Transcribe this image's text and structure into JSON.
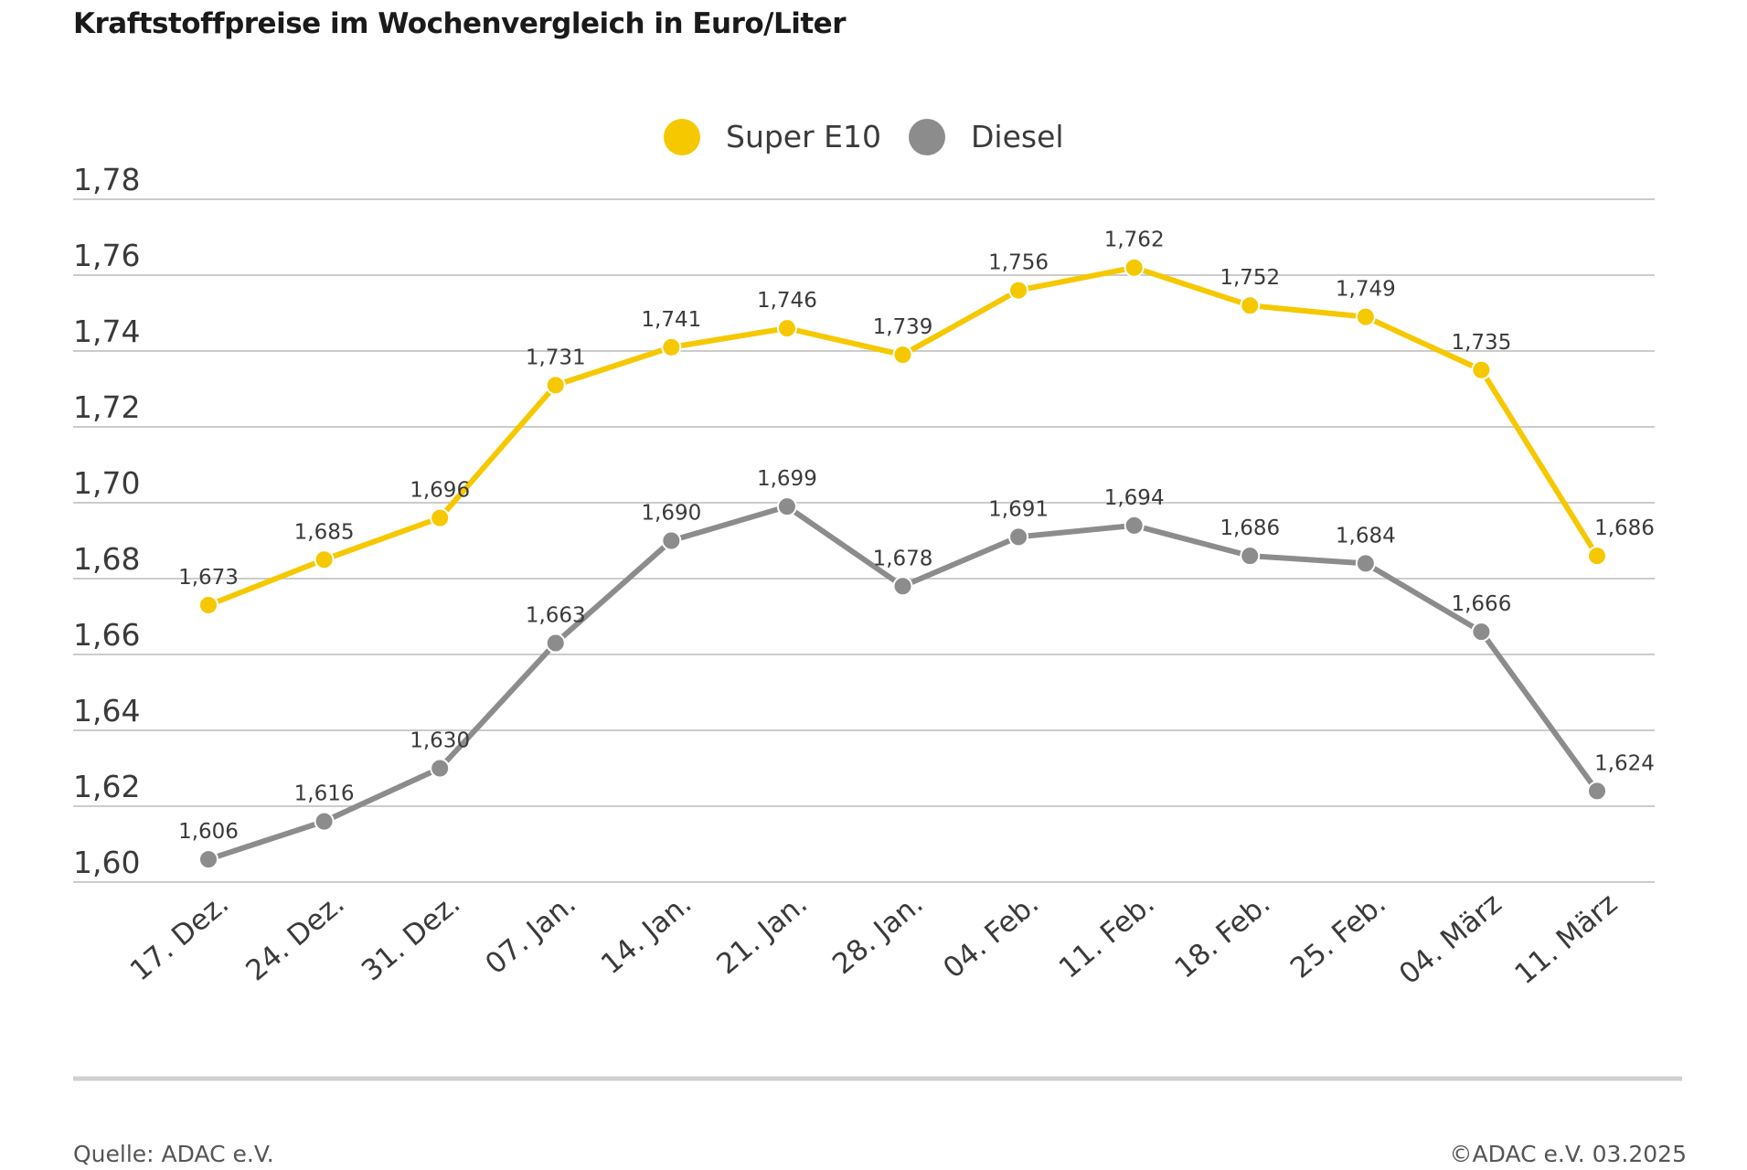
{
  "title": "Kraftstoffpreise im Wochenvergleich in Euro/Liter",
  "footer": {
    "source": "Quelle: ADAC e.V.",
    "copyright": "©ADAC e.V. 03.2025"
  },
  "colors": {
    "super_e10": "#F5C800",
    "diesel": "#8C8C8C",
    "grid": "#cccccc",
    "text": "#3a3a3a"
  },
  "chart_data": {
    "type": "line",
    "categories": [
      "17. Dez.",
      "24. Dez.",
      "31. Dez.",
      "07. Jan.",
      "14. Jan.",
      "21. Jan.",
      "28. Jan.",
      "04. Feb.",
      "11. Feb.",
      "18. Feb.",
      "25. Feb.",
      "04. März",
      "11. März"
    ],
    "ylim": [
      1.6,
      1.78
    ],
    "yticks": [
      "1,60",
      "1,62",
      "1,64",
      "1,66",
      "1,68",
      "1,70",
      "1,72",
      "1,74",
      "1,76",
      "1,78"
    ],
    "grid": true,
    "legend_position": "top-center",
    "series": [
      {
        "name": "Super E10",
        "values": [
          1.673,
          1.685,
          1.696,
          1.731,
          1.741,
          1.746,
          1.739,
          1.756,
          1.762,
          1.752,
          1.749,
          1.735,
          1.686
        ],
        "labels": [
          "1,673",
          "1,685",
          "1,696",
          "1,731",
          "1,741",
          "1,746",
          "1,739",
          "1,756",
          "1,762",
          "1,752",
          "1,749",
          "1,735",
          "1,686"
        ]
      },
      {
        "name": "Diesel",
        "values": [
          1.606,
          1.616,
          1.63,
          1.663,
          1.69,
          1.699,
          1.678,
          1.691,
          1.694,
          1.686,
          1.684,
          1.666,
          1.624
        ],
        "labels": [
          "1,606",
          "1,616",
          "1,630",
          "1,663",
          "1,690",
          "1,699",
          "1,678",
          "1,691",
          "1,694",
          "1,686",
          "1,684",
          "1,666",
          "1,624"
        ]
      }
    ]
  }
}
